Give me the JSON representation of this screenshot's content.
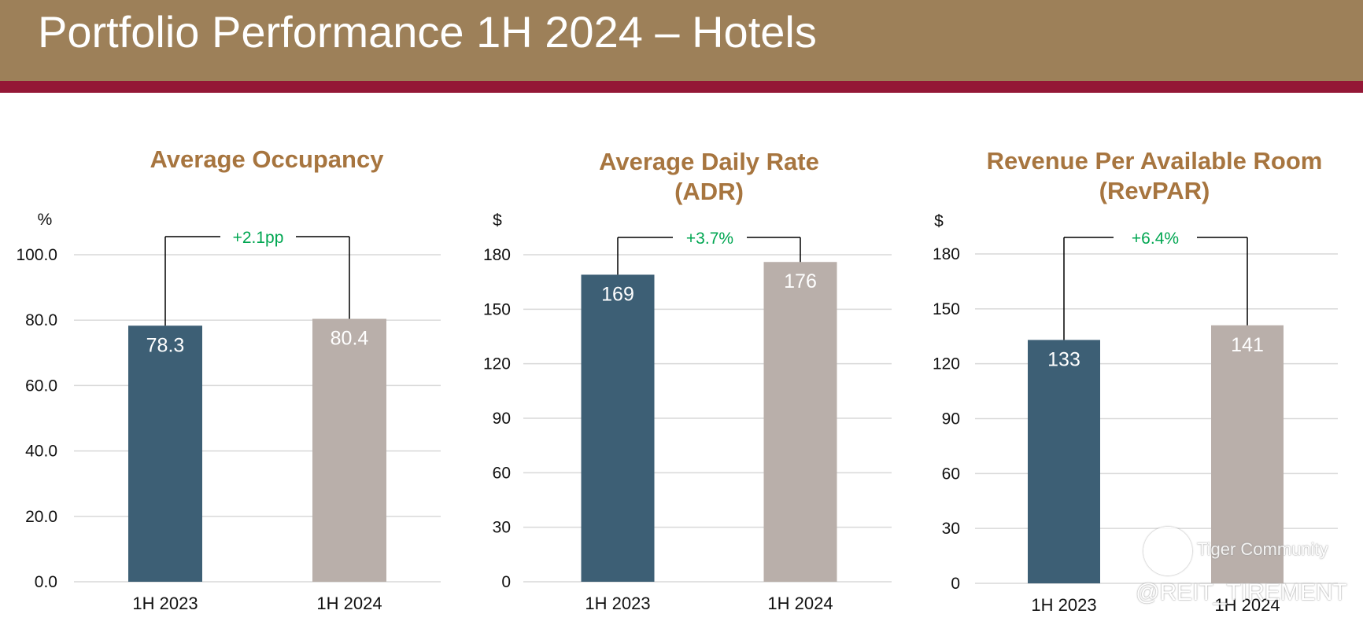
{
  "header": {
    "title": "Portfolio Performance 1H 2024 – Hotels"
  },
  "colors": {
    "header_bg": "#9d8059",
    "header_rule": "#941736",
    "title": "#a7753f",
    "bar_2023": "#3d5f75",
    "bar_2024": "#b9afaa",
    "growth": "#00a651"
  },
  "chart_data": [
    {
      "type": "bar",
      "title": [
        "Average Occupancy"
      ],
      "unit": "%",
      "categories": [
        "1H 2023",
        "1H 2024"
      ],
      "values": [
        78.3,
        80.4
      ],
      "value_labels": [
        "78.3",
        "80.4"
      ],
      "ylim": [
        0,
        100
      ],
      "yticks": [
        "0.0",
        "20.0",
        "40.0",
        "60.0",
        "80.0",
        "100.0"
      ],
      "growth": "+2.1pp",
      "grid": true
    },
    {
      "type": "bar",
      "title": [
        "Average Daily Rate",
        "(ADR)"
      ],
      "unit": "$",
      "categories": [
        "1H 2023",
        "1H 2024"
      ],
      "values": [
        169,
        176
      ],
      "value_labels": [
        "169",
        "176"
      ],
      "ylim": [
        0,
        180
      ],
      "yticks": [
        "0",
        "30",
        "60",
        "90",
        "120",
        "150",
        "180"
      ],
      "growth": "+3.7%",
      "grid": true
    },
    {
      "type": "bar",
      "title": [
        "Revenue Per Available Room",
        "(RevPAR)"
      ],
      "unit": "$",
      "categories": [
        "1H 2023",
        "1H 2024"
      ],
      "values": [
        133,
        141
      ],
      "value_labels": [
        "133",
        "141"
      ],
      "ylim": [
        0,
        180
      ],
      "yticks": [
        "0",
        "30",
        "60",
        "90",
        "120",
        "150",
        "180"
      ],
      "growth": "+6.4%",
      "grid": true
    }
  ],
  "watermark": {
    "brand": "Tiger Community",
    "handle": "@REIT_TIREMENT"
  }
}
